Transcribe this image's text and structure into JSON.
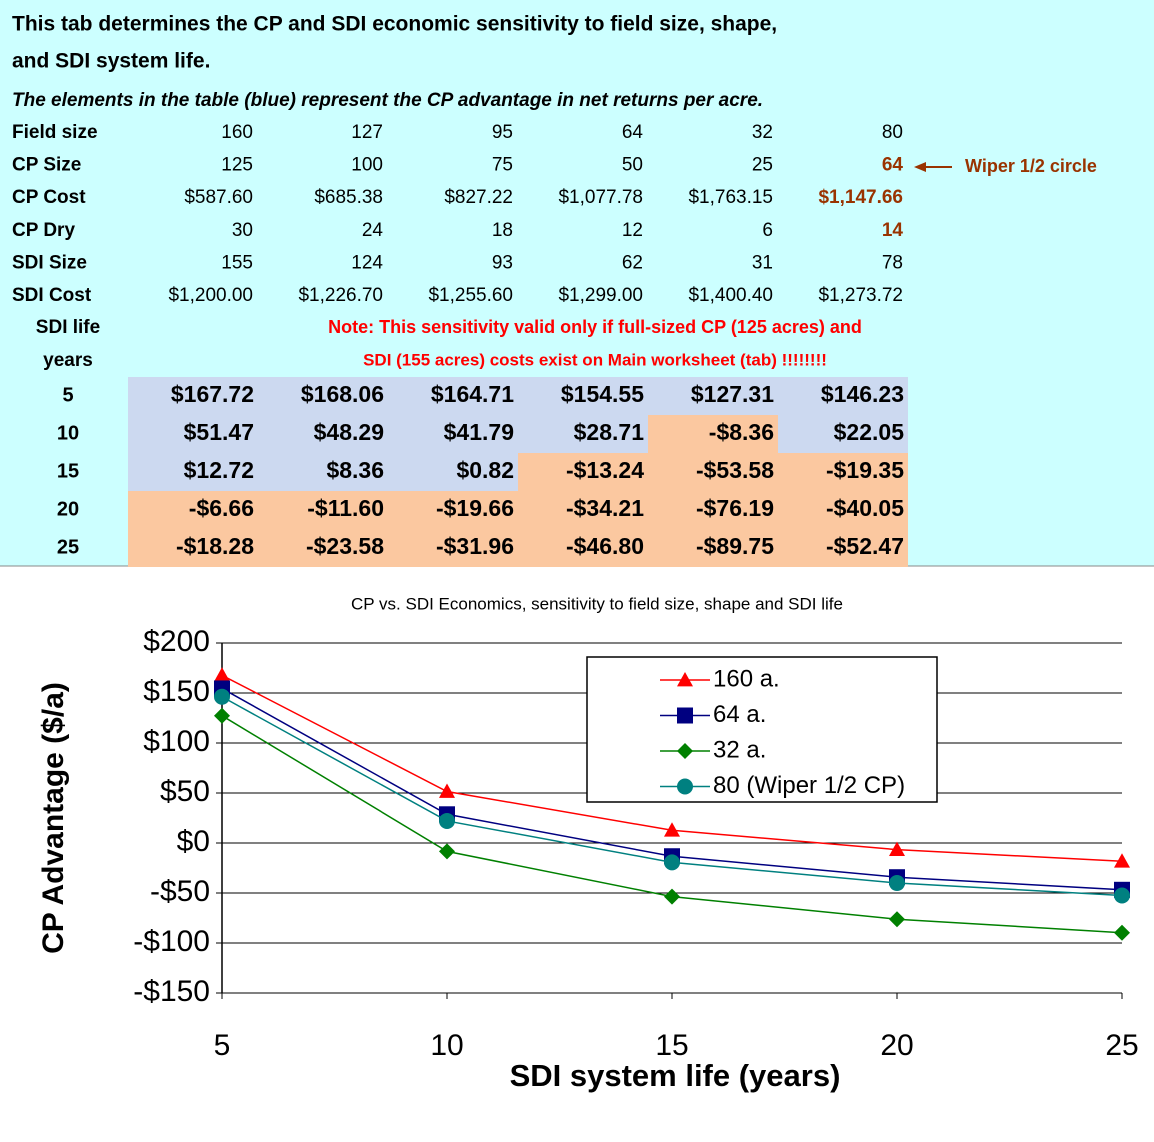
{
  "header": {
    "title_lines": [
      "This tab determines the CP and SDI economic sensitivity to field size, shape,",
      "and SDI system life."
    ],
    "subtitle": "The elements in the table (blue) represent the CP advantage in net returns per acre."
  },
  "params": {
    "accent_color": "#993300",
    "rows": [
      {
        "label": "Field size",
        "cells": [
          "160",
          "127",
          "95",
          "64",
          "32",
          "80"
        ]
      },
      {
        "label": "CP Size",
        "cells": [
          "125",
          "100",
          "75",
          "50",
          "25",
          "64"
        ],
        "accent": true
      },
      {
        "label": "CP Cost",
        "cells": [
          "$587.60",
          "$685.38",
          "$827.22",
          "$1,077.78",
          "$1,763.15",
          "$1,147.66"
        ],
        "accent": true
      },
      {
        "label": "CP Dry",
        "cells": [
          "30",
          "24",
          "18",
          "12",
          "6",
          "14"
        ],
        "accent": true
      },
      {
        "label": "SDI Size",
        "cells": [
          "155",
          "124",
          "93",
          "62",
          "31",
          "78"
        ]
      },
      {
        "label": "SDI Cost",
        "cells": [
          "$1,200.00",
          "$1,226.70",
          "$1,255.60",
          "$1,299.00",
          "$1,400.40",
          "$1,273.72"
        ]
      }
    ]
  },
  "annotation": "Wiper  1/2 circle",
  "life_label": [
    "SDI life",
    "years"
  ],
  "note_lines": [
    "Note: This sensitivity valid only if full-sized CP (125 acres) and",
    "SDI (155 acres) costs exist on Main worksheet (tab) !!!!!!!!"
  ],
  "results": {
    "positive_color": "#ccd9f0",
    "negative_color": "#fbc8a0",
    "rows": [
      {
        "life": "5",
        "cells": [
          "$167.72",
          "$168.06",
          "$164.71",
          "$154.55",
          "$127.31",
          "$146.23"
        ]
      },
      {
        "life": "10",
        "cells": [
          "$51.47",
          "$48.29",
          "$41.79",
          "$28.71",
          "-$8.36",
          "$22.05"
        ]
      },
      {
        "life": "15",
        "cells": [
          "$12.72",
          "$8.36",
          "$0.82",
          "-$13.24",
          "-$53.58",
          "-$19.35"
        ]
      },
      {
        "life": "20",
        "cells": [
          "-$6.66",
          "-$11.60",
          "-$19.66",
          "-$34.21",
          "-$76.19",
          "-$40.05"
        ]
      },
      {
        "life": "25",
        "cells": [
          "-$18.28",
          "-$23.58",
          "-$31.96",
          "-$46.80",
          "-$89.75",
          "-$52.47"
        ]
      }
    ]
  },
  "chart_data": {
    "type": "line",
    "title": "CP vs. SDI Economics, sensitivity to field size, shape and SDI life",
    "x_label": "SDI system life (years)",
    "y_label": "CP Advantage ($/a)",
    "x": [
      5,
      10,
      15,
      20,
      25
    ],
    "xlim": [
      5,
      25
    ],
    "xticks": [
      5,
      10,
      15,
      20,
      25
    ],
    "ylim": [
      -150,
      200
    ],
    "yticks": [
      {
        "value": -150,
        "label": "-$150"
      },
      {
        "value": -100,
        "label": "-$100"
      },
      {
        "value": -50,
        "label": "-$50"
      },
      {
        "value": 0,
        "label": "$0"
      },
      {
        "value": 50,
        "label": "$50"
      },
      {
        "value": 100,
        "label": "$100"
      },
      {
        "value": 150,
        "label": "$150"
      },
      {
        "value": 200,
        "label": "$200"
      }
    ],
    "grid": true,
    "legend": "upper right",
    "series": [
      {
        "name": "160 a.",
        "color": "#ff0000",
        "marker": "triangle",
        "values": [
          167.72,
          51.47,
          12.72,
          -6.66,
          -18.28
        ]
      },
      {
        "name": "64 a.",
        "color": "#000080",
        "marker": "square",
        "values": [
          154.55,
          28.71,
          -13.24,
          -34.21,
          -46.8
        ]
      },
      {
        "name": "32 a.",
        "color": "#008000",
        "marker": "diamond",
        "values": [
          127.31,
          -8.36,
          -53.58,
          -76.19,
          -89.75
        ]
      },
      {
        "name": "80 (Wiper 1/2 CP)",
        "color": "#008080",
        "marker": "circle",
        "values": [
          146.23,
          22.05,
          -19.35,
          -40.05,
          -52.47
        ]
      }
    ]
  }
}
